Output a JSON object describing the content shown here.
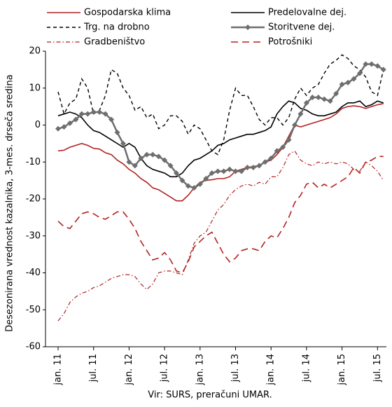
{
  "chart_data": {
    "type": "line",
    "ylabel": "Desezonirana vrednost kazalnika, 3-mes. drseča sredina",
    "source": "Vir: SURS, preračuni UMAR.",
    "categories": [
      "jan. 11",
      null,
      null,
      null,
      null,
      null,
      "jul. 11",
      null,
      null,
      null,
      null,
      null,
      "jan. 12",
      null,
      null,
      null,
      null,
      null,
      "jul. 12",
      null,
      null,
      null,
      null,
      null,
      "jan. 13",
      null,
      null,
      null,
      null,
      null,
      "jul. 13",
      null,
      null,
      null,
      null,
      null,
      "jan. 14",
      null,
      null,
      null,
      null,
      null,
      "jul. 14",
      null,
      null,
      null,
      null,
      null,
      "jan. 15",
      null,
      null,
      null,
      null,
      null,
      "jul. 15",
      null
    ],
    "ylim": [
      -60,
      20
    ],
    "yticks": [
      -60,
      -50,
      -40,
      -30,
      -20,
      -10,
      0,
      10,
      20
    ],
    "grid": false,
    "series": [
      {
        "name": "Gospodarska klima",
        "color": "#b22222",
        "dash": "none",
        "width": 1.6,
        "values": [
          -7,
          -6.8,
          -6,
          -5.5,
          -5,
          -5.5,
          -6.3,
          -6.5,
          -7.5,
          -8,
          -9.5,
          -10.5,
          -12,
          -13,
          -14.5,
          -15.5,
          -17,
          -17.5,
          -18.5,
          -19.5,
          -20.5,
          -20.5,
          -19,
          -17,
          -15.5,
          -15,
          -14.8,
          -14.5,
          -14.5,
          -14,
          -12.5,
          -12,
          -11.5,
          -11.2,
          -11,
          -10,
          -9.5,
          -8,
          -6,
          -3,
          0,
          -0.5,
          0,
          0.5,
          1,
          1.5,
          2,
          3,
          4.5,
          5,
          5.2,
          5,
          4.5,
          5,
          5.5,
          5.8
        ]
      },
      {
        "name": "Predelovalne dej.",
        "color": "#000000",
        "dash": "none",
        "width": 1.6,
        "values": [
          2.5,
          3,
          3.5,
          3,
          2,
          0,
          -1.5,
          -2,
          -3,
          -4,
          -5,
          -6,
          -5,
          -6,
          -9,
          -11,
          -12,
          -12.5,
          -13,
          -14,
          -14,
          -13,
          -11,
          -9.5,
          -9,
          -8,
          -7,
          -5.5,
          -5,
          -4,
          -3.5,
          -3,
          -2.5,
          -2.5,
          -2,
          -1.5,
          -0.5,
          3,
          5,
          6.5,
          6,
          4.5,
          4,
          3,
          2.5,
          2.5,
          3,
          3.5,
          5,
          6,
          6,
          6.5,
          5,
          5.5,
          6.5,
          6
        ]
      },
      {
        "name": "Trg. na drobno",
        "color": "#000000",
        "dash": "5,4",
        "width": 1.4,
        "values": [
          9,
          3,
          6,
          7,
          12.5,
          10,
          3,
          4,
          8,
          15,
          14,
          10,
          8,
          4,
          5,
          2,
          3,
          -1,
          0,
          2.5,
          2.5,
          1,
          -2.5,
          0,
          -1,
          -4,
          -7,
          -8,
          -4,
          4,
          10,
          8,
          8,
          5,
          1.5,
          0,
          2,
          2,
          0,
          2,
          7,
          10,
          8,
          10,
          11,
          14,
          16.5,
          17.5,
          19,
          18,
          16,
          15,
          13,
          9,
          8,
          15
        ]
      },
      {
        "name": "Storitvene dej.",
        "color": "#6e6e6e",
        "dash": "none",
        "width": 2.5,
        "marker": "diamond",
        "values": [
          -1,
          -0.5,
          0.5,
          1.5,
          3,
          3,
          3.5,
          3.5,
          3,
          1.5,
          -2,
          -5,
          -10,
          -11,
          -9,
          -8,
          -8,
          -8.5,
          -9.5,
          -11,
          -13,
          -15,
          -16.5,
          -17,
          -16,
          -14.5,
          -13,
          -12.5,
          -12.5,
          -12,
          -12.5,
          -12.5,
          -11.5,
          -11.5,
          -11,
          -10,
          -9,
          -7,
          -6,
          -4,
          0,
          3,
          6,
          7.5,
          7.5,
          7,
          6.5,
          8.5,
          11,
          11.5,
          12.5,
          14,
          16.5,
          16.5,
          16,
          15
        ]
      },
      {
        "name": "Gradbeništvo",
        "color": "#b22222",
        "dash": "6,3,1.5,3",
        "width": 1.2,
        "values": [
          -53,
          -51,
          -48,
          -46.5,
          -45.5,
          -45,
          -44,
          -43.5,
          -42.5,
          -41.5,
          -41,
          -40.5,
          -40.5,
          -41,
          -43,
          -44.5,
          -43,
          -40,
          -39.5,
          -39.5,
          -40,
          -40.5,
          -36.5,
          -32,
          -30,
          -29,
          -26,
          -23,
          -21.5,
          -19,
          -17.5,
          -16.5,
          -16,
          -16.5,
          -15.5,
          -16,
          -14,
          -14,
          -11.5,
          -8,
          -7,
          -9.5,
          -10.5,
          -11,
          -10,
          -10.5,
          -10,
          -10.5,
          -10,
          -10.5,
          -12,
          -12.5,
          -10,
          -11,
          -12.5,
          -15
        ]
      },
      {
        "name": "Potrošniki",
        "color": "#b22222",
        "dash": "10,6",
        "width": 1.6,
        "values": [
          -26,
          -27.5,
          -28,
          -26,
          -24,
          -23.5,
          -24,
          -25,
          -25.5,
          -24.5,
          -23.5,
          -23.5,
          -25.5,
          -28,
          -31.5,
          -34,
          -36.5,
          -36,
          -34.5,
          -36.5,
          -39.5,
          -40,
          -37,
          -33,
          -31.5,
          -30,
          -29,
          -32,
          -35,
          -37,
          -36,
          -34,
          -33.5,
          -33.5,
          -34,
          -31.5,
          -30,
          -30.5,
          -28,
          -25,
          -21,
          -19,
          -16,
          -15.5,
          -17,
          -16,
          -17,
          -16,
          -15,
          -14,
          -11.5,
          -13,
          -10,
          -9.5,
          -8.5,
          -8.5
        ]
      }
    ]
  }
}
